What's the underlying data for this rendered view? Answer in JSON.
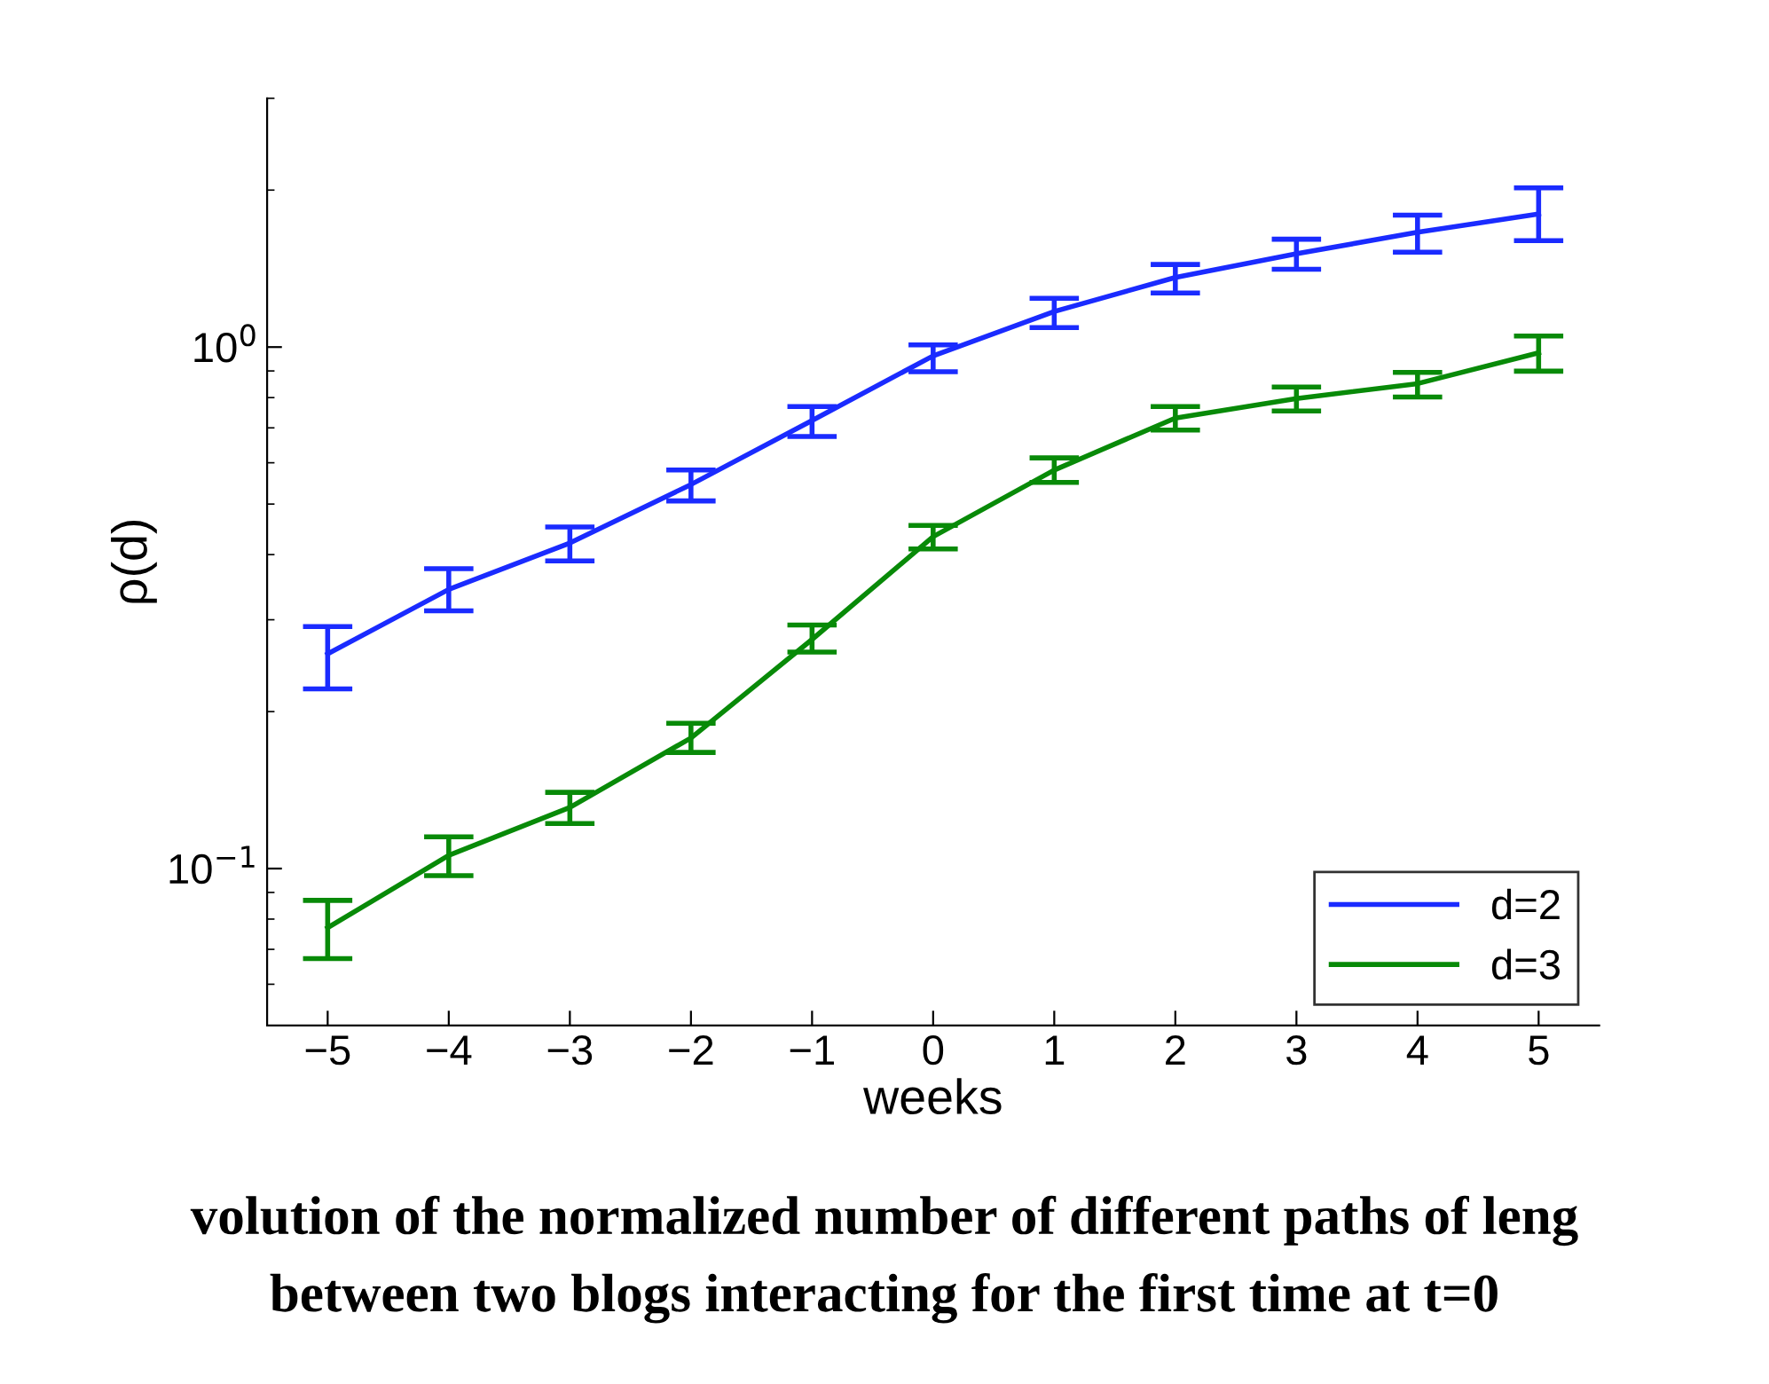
{
  "chart_data": {
    "type": "line",
    "xlabel": "weeks",
    "ylabel": "ρ(d)",
    "x": [
      -5,
      -4,
      -3,
      -2,
      -1,
      0,
      1,
      2,
      3,
      4,
      5
    ],
    "series": [
      {
        "name": "d=2",
        "color": "#1a2bff",
        "values": [
          0.258,
          0.343,
          0.421,
          0.545,
          0.723,
          0.962,
          1.17,
          1.36,
          1.51,
          1.66,
          1.8
        ],
        "errors": [
          [
            0.221,
            0.291
          ],
          [
            0.312,
            0.376
          ],
          [
            0.389,
            0.452
          ],
          [
            0.507,
            0.581
          ],
          [
            0.674,
            0.769
          ],
          [
            0.897,
            1.01
          ],
          [
            1.09,
            1.24
          ],
          [
            1.27,
            1.44
          ],
          [
            1.41,
            1.61
          ],
          [
            1.52,
            1.79
          ],
          [
            1.6,
            2.02
          ]
        ]
      },
      {
        "name": "d=3",
        "color": "#088a08",
        "values": [
          0.077,
          0.106,
          0.131,
          0.178,
          0.275,
          0.433,
          0.581,
          0.731,
          0.797,
          0.851,
          0.975
        ],
        "errors": [
          [
            0.0672,
            0.0869
          ],
          [
            0.0969,
            0.115
          ],
          [
            0.122,
            0.14
          ],
          [
            0.167,
            0.19
          ],
          [
            0.26,
            0.293
          ],
          [
            0.41,
            0.455
          ],
          [
            0.55,
            0.613
          ],
          [
            0.693,
            0.769
          ],
          [
            0.754,
            0.838
          ],
          [
            0.802,
            0.894
          ],
          [
            0.899,
            1.05
          ]
        ]
      }
    ],
    "log": "y",
    "xlim": [
      -5.5,
      5.5
    ],
    "ylim": [
      0.05,
      3
    ],
    "xticks": [
      {
        "value": -5,
        "label": "−5"
      },
      {
        "value": -4,
        "label": "−4"
      },
      {
        "value": -3,
        "label": "−3"
      },
      {
        "value": -2,
        "label": "−2"
      },
      {
        "value": -1,
        "label": "−1"
      },
      0,
      1,
      2,
      3,
      4,
      5
    ],
    "yticks": [
      {
        "value": 0.1,
        "label": "10$^{−1}$"
      },
      {
        "value": 1,
        "label": "10$^{0}$"
      }
    ],
    "grid": false,
    "legend": "lower right",
    "line_style": "solid",
    "marker": "none",
    "annotations": [
      "volution of the normalized number of different paths of leng",
      "between two blogs interacting for the first time at t=0"
    ]
  }
}
